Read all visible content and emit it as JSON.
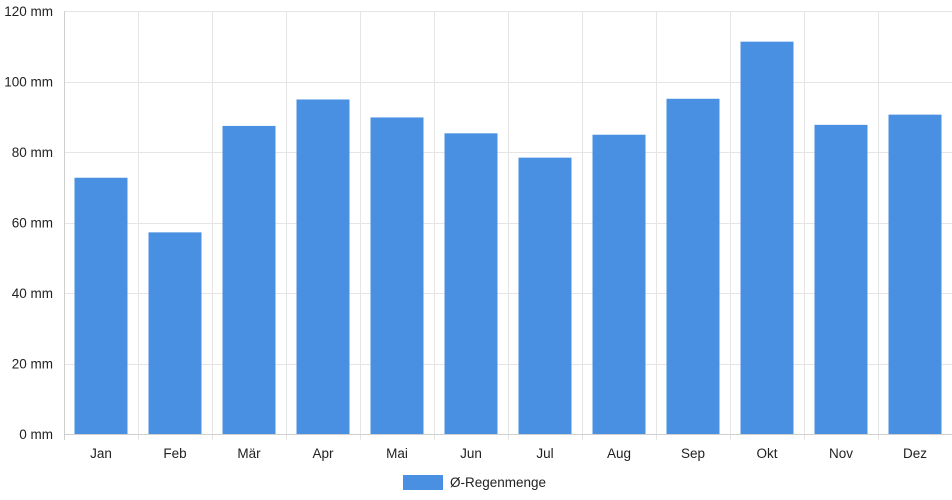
{
  "chart_data": {
    "type": "bar",
    "title": "",
    "xlabel": "",
    "ylabel": "",
    "categories": [
      "Jan",
      "Feb",
      "Mär",
      "Apr",
      "Mai",
      "Jun",
      "Jul",
      "Aug",
      "Sep",
      "Okt",
      "Nov",
      "Dez"
    ],
    "series": [
      {
        "name": "Ø-Regenmenge",
        "values": [
          72.7,
          57.2,
          87.4,
          94.9,
          89.8,
          85.3,
          78.4,
          84.9,
          95.1,
          111.3,
          87.7,
          90.6
        ],
        "color": "#4a90e2"
      }
    ],
    "ylim": [
      0,
      120
    ],
    "y_ticks": [
      0,
      20,
      40,
      60,
      80,
      100,
      120
    ],
    "y_unit": "mm",
    "grid": true,
    "legend_position": "bottom"
  }
}
